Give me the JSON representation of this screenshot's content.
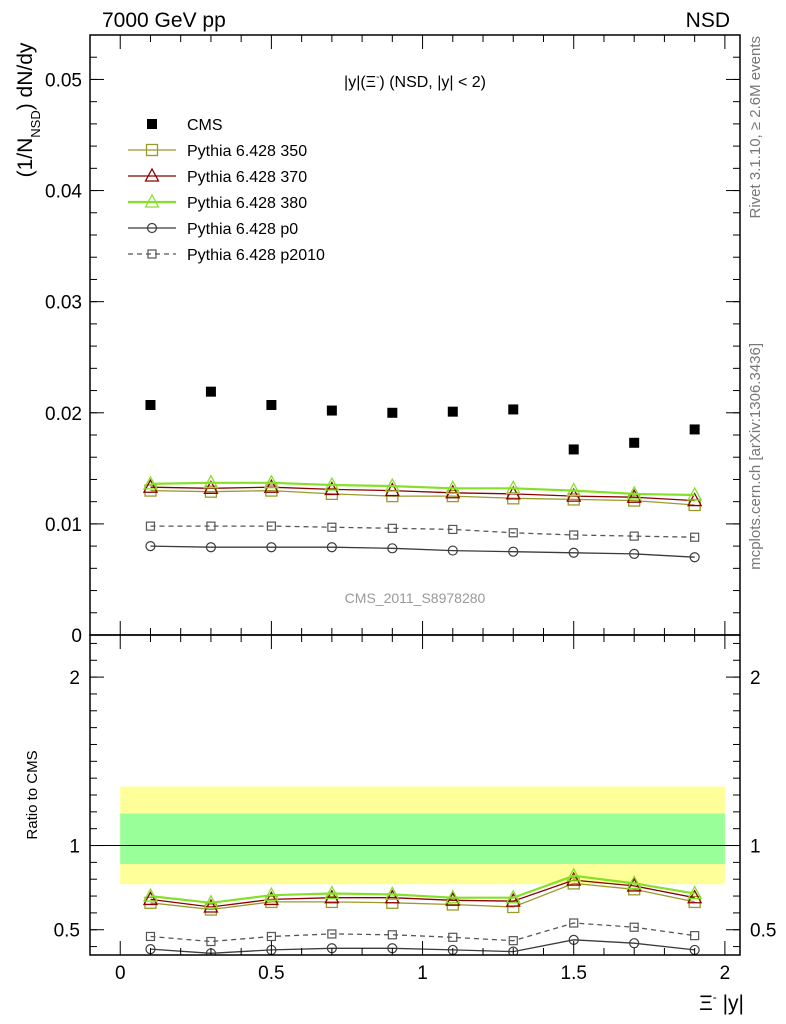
{
  "header": {
    "left": "7000 GeV pp",
    "right": "NSD"
  },
  "side_labels": {
    "rivet": "Rivet 3.1.10, ≥ 2.6M events",
    "mcplots": "mcplots.cern.ch [arXiv:1306.3436]"
  },
  "analysis_label": "CMS_2011_S8978280",
  "colors": {
    "cms": "#000000",
    "py350": "#9a9a2b",
    "py370": "#8b0000",
    "py380": "#86e02a",
    "pyp0": "#3b3b3b",
    "pyp2010": "#555555",
    "band_outer": "#ffff99",
    "band_inner": "#99ff99"
  },
  "chart_data": [
    {
      "type": "scatter",
      "title_parts": {
        "a": "|y|(Ξ",
        "sup": "-",
        "b": ") (NSD, |y| < 2)"
      },
      "ylabel": {
        "pre": "(1/N",
        "sub": "NSD",
        "post": ") dN/dy"
      },
      "xlim": [
        -0.1,
        2.05
      ],
      "ylim": [
        0,
        0.054
      ],
      "y_ticks": [
        {
          "v": 0,
          "label": "0"
        },
        {
          "v": 0.01,
          "label": "0.01"
        },
        {
          "v": 0.02,
          "label": "0.02"
        },
        {
          "v": 0.03,
          "label": "0.03"
        },
        {
          "v": 0.04,
          "label": "0.04"
        },
        {
          "v": 0.05,
          "label": "0.05"
        }
      ],
      "x": [
        0.1,
        0.3,
        0.5,
        0.7,
        0.9,
        1.1,
        1.3,
        1.5,
        1.7,
        1.9
      ],
      "series": [
        {
          "name": "CMS",
          "key": "cms",
          "marker": "square-filled",
          "line": "none",
          "values": [
            0.0207,
            0.0219,
            0.0207,
            0.0202,
            0.02,
            0.0201,
            0.0203,
            0.0167,
            0.0173,
            0.0185
          ]
        },
        {
          "name": "Pythia 6.428 350",
          "key": "py350",
          "marker": "square-open",
          "line": "solid",
          "values": [
            0.013,
            0.0129,
            0.013,
            0.0127,
            0.0125,
            0.0125,
            0.0123,
            0.0122,
            0.0121,
            0.0117
          ]
        },
        {
          "name": "Pythia 6.428 370",
          "key": "py370",
          "marker": "triangle-open",
          "line": "solid",
          "values": [
            0.0133,
            0.0132,
            0.0133,
            0.0131,
            0.013,
            0.0128,
            0.0127,
            0.0125,
            0.0124,
            0.0121
          ]
        },
        {
          "name": "Pythia 6.428 380",
          "key": "py380",
          "marker": "triangle-open",
          "line": "solid",
          "values": [
            0.0136,
            0.0137,
            0.0137,
            0.0135,
            0.0134,
            0.0132,
            0.0132,
            0.013,
            0.0127,
            0.0126
          ]
        },
        {
          "name": "Pythia 6.428 p0",
          "key": "pyp0",
          "marker": "circle-open",
          "line": "solid",
          "values": [
            0.008,
            0.0079,
            0.0079,
            0.0079,
            0.0078,
            0.0076,
            0.0075,
            0.0074,
            0.0073,
            0.007
          ]
        },
        {
          "name": "Pythia 6.428 p2010",
          "key": "pyp2010",
          "marker": "square-open-small",
          "line": "dashed",
          "values": [
            0.0098,
            0.0098,
            0.0098,
            0.0097,
            0.0096,
            0.0095,
            0.0092,
            0.009,
            0.0089,
            0.0088
          ]
        }
      ]
    },
    {
      "type": "line",
      "ylabel": "Ratio to CMS",
      "xlabel": {
        "pre": "Ξ",
        "sup": "-",
        "post": " |y|"
      },
      "xlim": [
        -0.1,
        2.05
      ],
      "ylim": [
        0.35,
        2.25
      ],
      "x_ticks": [
        {
          "v": 0,
          "label": "0"
        },
        {
          "v": 0.5,
          "label": "0.5"
        },
        {
          "v": 1,
          "label": "1"
        },
        {
          "v": 1.5,
          "label": "1.5"
        },
        {
          "v": 2,
          "label": "2"
        }
      ],
      "y_ticks": [
        {
          "v": 0.5,
          "label": "0.5"
        },
        {
          "v": 1,
          "label": "1"
        },
        {
          "v": 2,
          "label": "2"
        }
      ],
      "band_x": [
        0,
        2
      ],
      "band_outer": [
        0.77,
        1.35
      ],
      "band_inner": [
        0.89,
        1.19
      ],
      "x": [
        0.1,
        0.3,
        0.5,
        0.7,
        0.9,
        1.1,
        1.3,
        1.5,
        1.7,
        1.9
      ],
      "series": [
        {
          "key": "py350",
          "marker": "square-open",
          "line": "solid",
          "values": [
            0.66,
            0.62,
            0.665,
            0.665,
            0.66,
            0.65,
            0.635,
            0.775,
            0.74,
            0.665
          ]
        },
        {
          "key": "py370",
          "marker": "triangle-open",
          "line": "solid",
          "values": [
            0.68,
            0.635,
            0.68,
            0.69,
            0.69,
            0.675,
            0.67,
            0.795,
            0.76,
            0.69
          ]
        },
        {
          "key": "py380",
          "marker": "triangle-open",
          "line": "solid",
          "values": [
            0.7,
            0.66,
            0.705,
            0.715,
            0.71,
            0.69,
            0.69,
            0.82,
            0.775,
            0.715
          ]
        },
        {
          "key": "pyp0",
          "marker": "circle-open",
          "line": "solid",
          "values": [
            0.385,
            0.36,
            0.38,
            0.39,
            0.39,
            0.38,
            0.37,
            0.44,
            0.42,
            0.38
          ]
        },
        {
          "key": "pyp2010",
          "marker": "square-open-small",
          "line": "dashed",
          "values": [
            0.46,
            0.43,
            0.46,
            0.475,
            0.47,
            0.455,
            0.435,
            0.54,
            0.515,
            0.465
          ]
        }
      ]
    }
  ]
}
